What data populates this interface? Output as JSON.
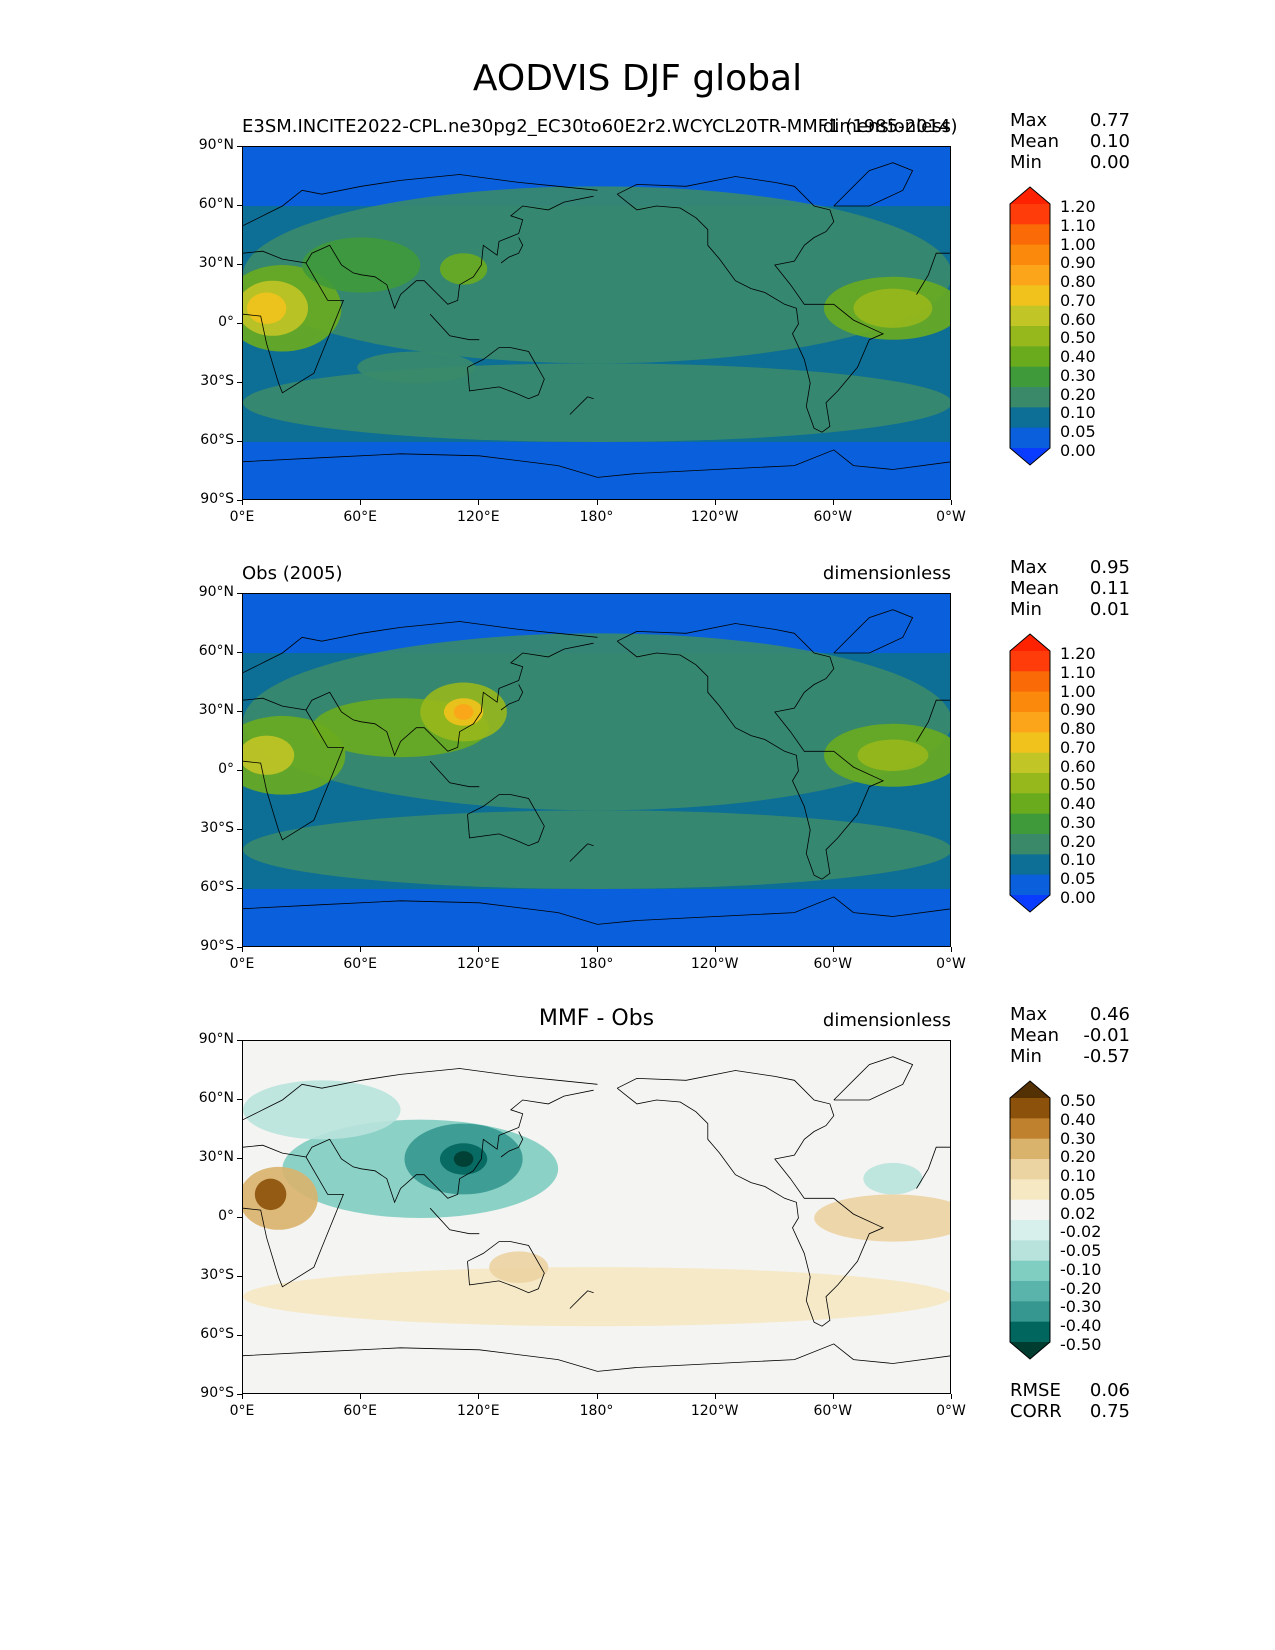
{
  "title": "AODVIS DJF global",
  "axis_ticks": {
    "lat": [
      "90°N",
      "60°N",
      "30°N",
      "0°",
      "30°S",
      "60°S",
      "90°S"
    ],
    "lon": [
      "0°E",
      "60°E",
      "120°E",
      "180°",
      "120°W",
      "60°W",
      "0°W"
    ]
  },
  "panels": [
    {
      "left_title": "E3SM.INCITE2022-CPL.ne30pg2_EC30to60E2r2.WCYCL20TR-MMF1 (1985-2014)",
      "center_title": "",
      "right_title": "dimensionless",
      "stats": {
        "max_label": "Max",
        "max": "0.77",
        "mean_label": "Mean",
        "mean": "0.10",
        "min_label": "Min",
        "min": "0.00"
      },
      "colorbar": [
        "1.20",
        "1.10",
        "1.00",
        "0.90",
        "0.80",
        "0.70",
        "0.60",
        "0.50",
        "0.40",
        "0.30",
        "0.20",
        "0.10",
        "0.05",
        "0.00"
      ]
    },
    {
      "left_title": "Obs (2005)",
      "center_title": "",
      "right_title": "dimensionless",
      "stats": {
        "max_label": "Max",
        "max": "0.95",
        "mean_label": "Mean",
        "mean": "0.11",
        "min_label": "Min",
        "min": "0.01"
      },
      "colorbar": [
        "1.20",
        "1.10",
        "1.00",
        "0.90",
        "0.80",
        "0.70",
        "0.60",
        "0.50",
        "0.40",
        "0.30",
        "0.20",
        "0.10",
        "0.05",
        "0.00"
      ]
    },
    {
      "left_title": "",
      "center_title": "MMF - Obs",
      "right_title": "dimensionless",
      "stats": {
        "max_label": "Max",
        "max": "0.46",
        "mean_label": "Mean",
        "mean": "-0.01",
        "min_label": "Min",
        "min": "-0.57"
      },
      "colorbar": [
        "0.50",
        "0.40",
        "0.30",
        "0.20",
        "0.10",
        "0.05",
        "0.02",
        "-0.02",
        "-0.05",
        "-0.10",
        "-0.20",
        "-0.30",
        "-0.40",
        "-0.50"
      ],
      "metrics": {
        "rmse_label": "RMSE",
        "rmse": "0.06",
        "corr_label": "CORR",
        "corr": "0.75"
      }
    }
  ],
  "chart_data": {
    "type": "heatmap",
    "title": "AODVIS DJF global",
    "projection": "PlateCarree",
    "xlim": [
      0,
      360
    ],
    "ylim": [
      -90,
      90
    ],
    "panels": [
      {
        "name": "E3SM MMF1 (1985-2014)",
        "levels": [
          0.0,
          0.05,
          0.1,
          0.2,
          0.3,
          0.4,
          0.5,
          0.6,
          0.7,
          0.8,
          0.9,
          1.0,
          1.1,
          1.2
        ],
        "max": 0.77,
        "mean": 0.1,
        "min": 0.0,
        "units": "dimensionless"
      },
      {
        "name": "Obs (2005)",
        "levels": [
          0.0,
          0.05,
          0.1,
          0.2,
          0.3,
          0.4,
          0.5,
          0.6,
          0.7,
          0.8,
          0.9,
          1.0,
          1.1,
          1.2
        ],
        "max": 0.95,
        "mean": 0.11,
        "min": 0.01,
        "units": "dimensionless"
      },
      {
        "name": "MMF - Obs",
        "levels": [
          -0.5,
          -0.4,
          -0.3,
          -0.2,
          -0.1,
          -0.05,
          -0.02,
          0.02,
          0.05,
          0.1,
          0.2,
          0.3,
          0.4,
          0.5
        ],
        "max": 0.46,
        "mean": -0.01,
        "min": -0.57,
        "rmse": 0.06,
        "corr": 0.75,
        "units": "dimensionless"
      }
    ],
    "colors": {
      "aod": [
        "#0a3cff",
        "#0a5fdc",
        "#0d6e96",
        "#3a8a6a",
        "#3f9a3a",
        "#6aab1e",
        "#97b81c",
        "#c2c526",
        "#f2c21c",
        "#fca51a",
        "#fb8a0c",
        "#fa6b07",
        "#ff3c0a",
        "#ff2200"
      ],
      "diff": [
        "#003c30",
        "#01665e",
        "#35978f",
        "#5ab4ac",
        "#80cdc1",
        "#b8e3dc",
        "#d8f0ec",
        "#f4f4f2",
        "#f6e8c3",
        "#ecd3a2",
        "#d9b26b",
        "#bf812d",
        "#8c510a",
        "#543005"
      ]
    }
  }
}
